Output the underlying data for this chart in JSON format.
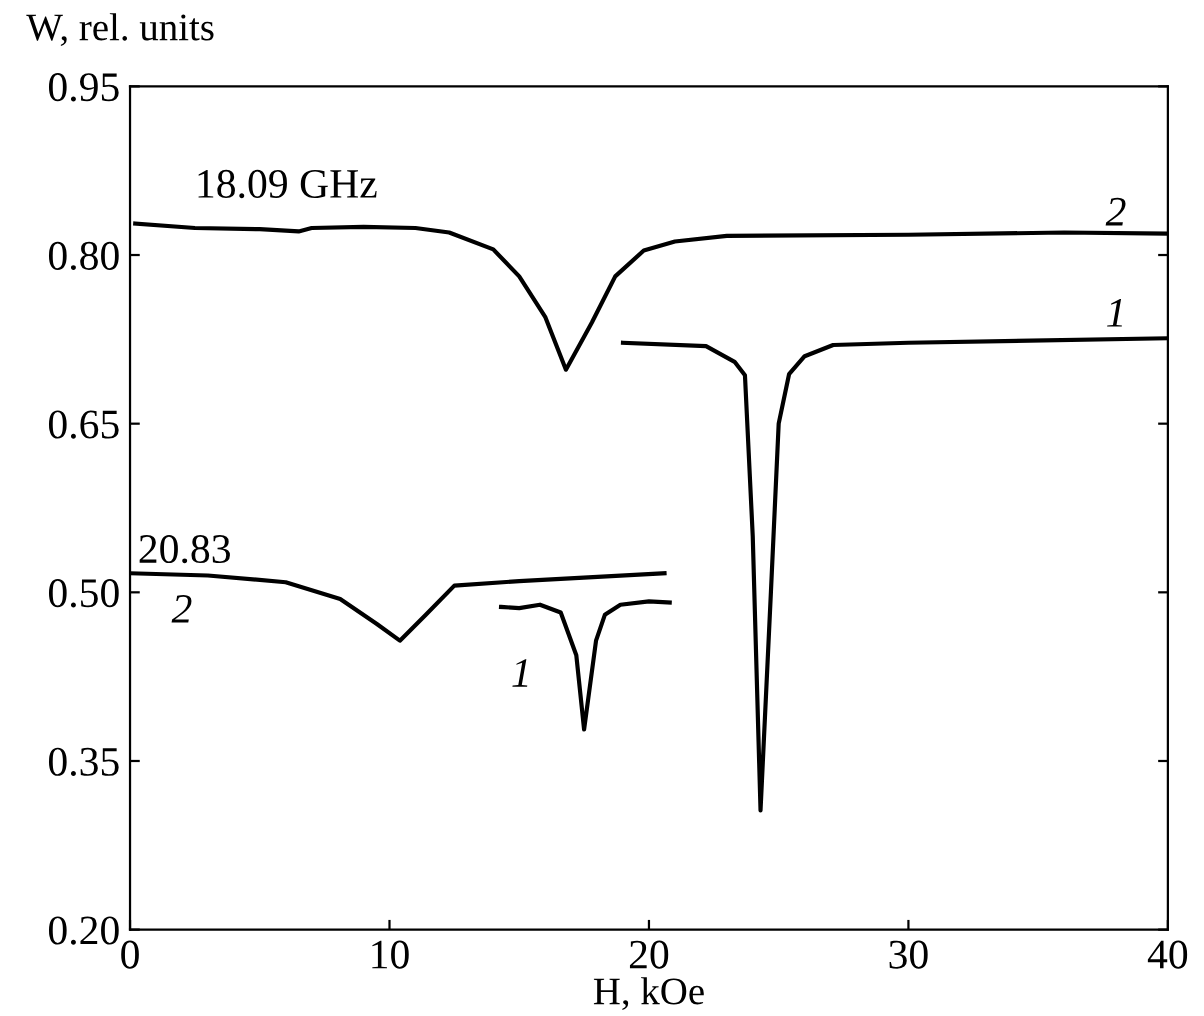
{
  "chart_data": {
    "type": "line",
    "xlabel": "H, kOe",
    "ylabel": "W, rel. units",
    "xlim": [
      0,
      40
    ],
    "ylim": [
      0.2,
      0.95
    ],
    "xticks": [
      0,
      10,
      20,
      30,
      40
    ],
    "yticks": [
      {
        "value": 0.2,
        "label": "0.20"
      },
      {
        "value": 0.35,
        "label": "0.35"
      },
      {
        "value": 0.5,
        "label": "0.50"
      },
      {
        "value": 0.65,
        "label": "0.65"
      },
      {
        "value": 0.8,
        "label": "0.80"
      },
      {
        "value": 0.95,
        "label": "0.95"
      }
    ],
    "grid": false,
    "marker": "none",
    "line_style": "solid",
    "series": [
      {
        "color": "#000000",
        "x": [
          0.2,
          2.5,
          5.0,
          6.5,
          7.0,
          9.0,
          11.0,
          12.3,
          14.0,
          15.0,
          16.0,
          16.8,
          17.8,
          18.7,
          19.8,
          21.0,
          23.0,
          30.0,
          36.0,
          40.0
        ],
        "values": [
          0.828,
          0.824,
          0.823,
          0.821,
          0.824,
          0.825,
          0.824,
          0.82,
          0.805,
          0.781,
          0.745,
          0.698,
          0.74,
          0.781,
          0.804,
          0.812,
          0.817,
          0.818,
          0.82,
          0.819
        ]
      },
      {
        "color": "#000000",
        "x": [
          19.0,
          22.2,
          23.3,
          23.7,
          24.0,
          24.3,
          24.7,
          25.0,
          25.4,
          26.0,
          27.1,
          30.0,
          40.0
        ],
        "values": [
          0.722,
          0.719,
          0.705,
          0.693,
          0.55,
          0.306,
          0.5,
          0.65,
          0.694,
          0.71,
          0.72,
          0.722,
          0.726
        ]
      },
      {
        "color": "#000000",
        "x": [
          0.0,
          3.0,
          6.0,
          8.1,
          9.5,
          10.4,
          11.4,
          12.5,
          15.0,
          20.6
        ],
        "values": [
          0.517,
          0.515,
          0.509,
          0.494,
          0.472,
          0.457,
          0.48,
          0.506,
          0.51,
          0.517
        ]
      },
      {
        "color": "#000000",
        "x": [
          14.3,
          15.0,
          15.8,
          16.6,
          17.2,
          17.5,
          17.96,
          18.3,
          18.9,
          20.0,
          20.8
        ],
        "values": [
          0.487,
          0.486,
          0.489,
          0.482,
          0.444,
          0.378,
          0.457,
          0.48,
          0.489,
          0.492,
          0.491
        ]
      }
    ],
    "annotations": [
      "18.09 GHz",
      "2",
      "1",
      "20.83",
      "2",
      "1"
    ]
  }
}
